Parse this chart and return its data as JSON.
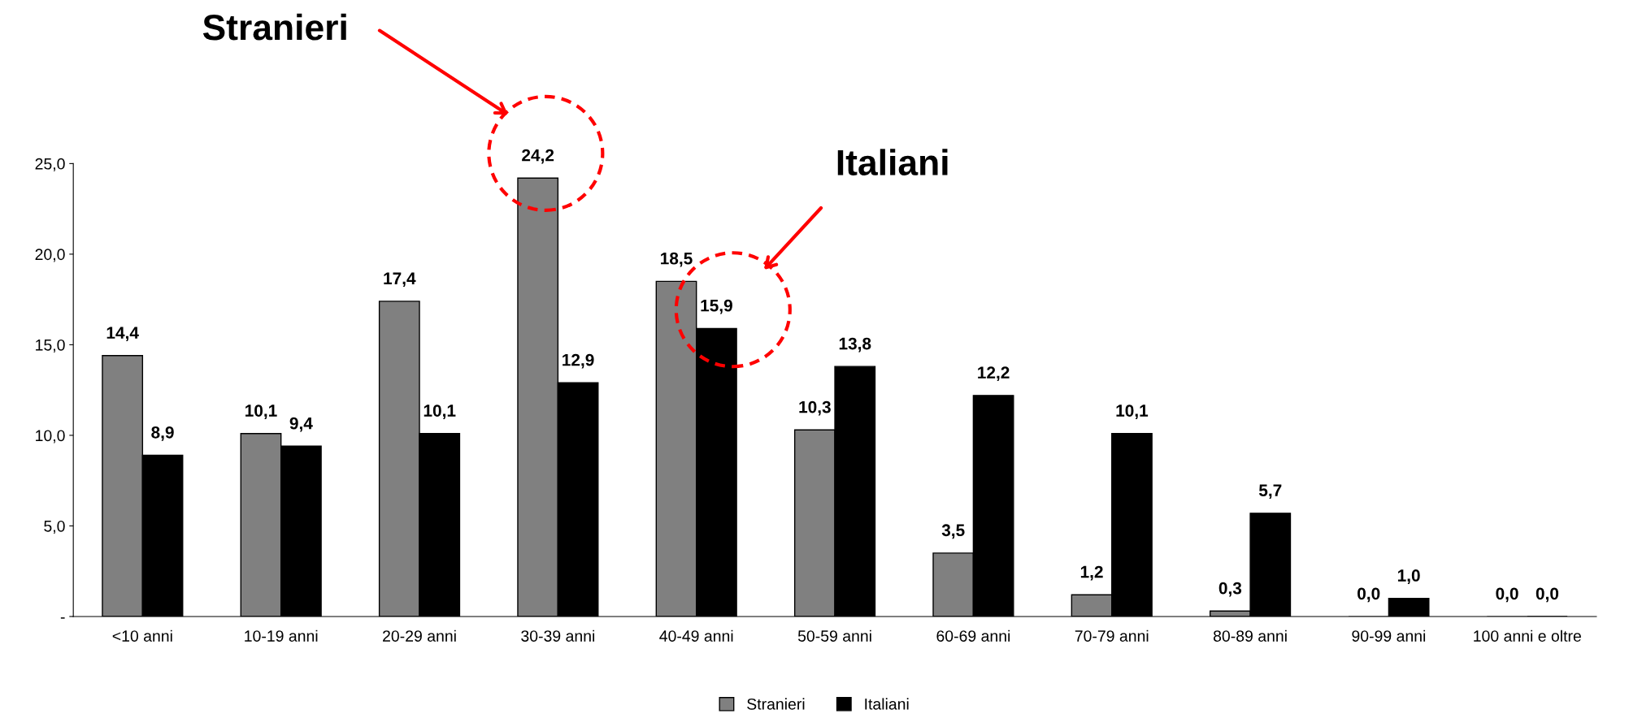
{
  "chart_data": {
    "type": "bar",
    "categories": [
      "<10 anni",
      "10-19 anni",
      "20-29 anni",
      "30-39 anni",
      "40-49 anni",
      "50-59 anni",
      "60-69 anni",
      "70-79 anni",
      "80-89 anni",
      "90-99 anni",
      "100 anni e oltre"
    ],
    "series": [
      {
        "name": "Stranieri",
        "color": "#808080",
        "values": [
          14.4,
          10.1,
          17.4,
          24.2,
          18.5,
          10.3,
          3.5,
          1.2,
          0.3,
          0.0,
          0.0
        ],
        "value_labels": [
          "14,4",
          "10,1",
          "17,4",
          "24,2",
          "18,5",
          "10,3",
          "3,5",
          "1,2",
          "0,3",
          "0,0",
          "0,0"
        ]
      },
      {
        "name": "Italiani",
        "color": "#000000",
        "values": [
          8.9,
          9.4,
          10.1,
          12.9,
          15.9,
          13.8,
          12.2,
          10.1,
          5.7,
          1.0,
          0.0
        ],
        "value_labels": [
          "8,9",
          "9,4",
          "10,1",
          "12,9",
          "15,9",
          "13,8",
          "12,2",
          "10,1",
          "5,7",
          "1,0",
          "0,0"
        ]
      }
    ],
    "ylim": [
      0,
      25
    ],
    "yticks": [
      {
        "value": 0,
        "label": "-"
      },
      {
        "value": 5,
        "label": "5,0"
      },
      {
        "value": 10,
        "label": "10,0"
      },
      {
        "value": 15,
        "label": "15,0"
      },
      {
        "value": 20,
        "label": "20,0"
      },
      {
        "value": 25,
        "label": "25,0"
      }
    ],
    "grid": false,
    "legend": "bottom",
    "annotations": [
      "Stranieri",
      "Italiani"
    ]
  }
}
